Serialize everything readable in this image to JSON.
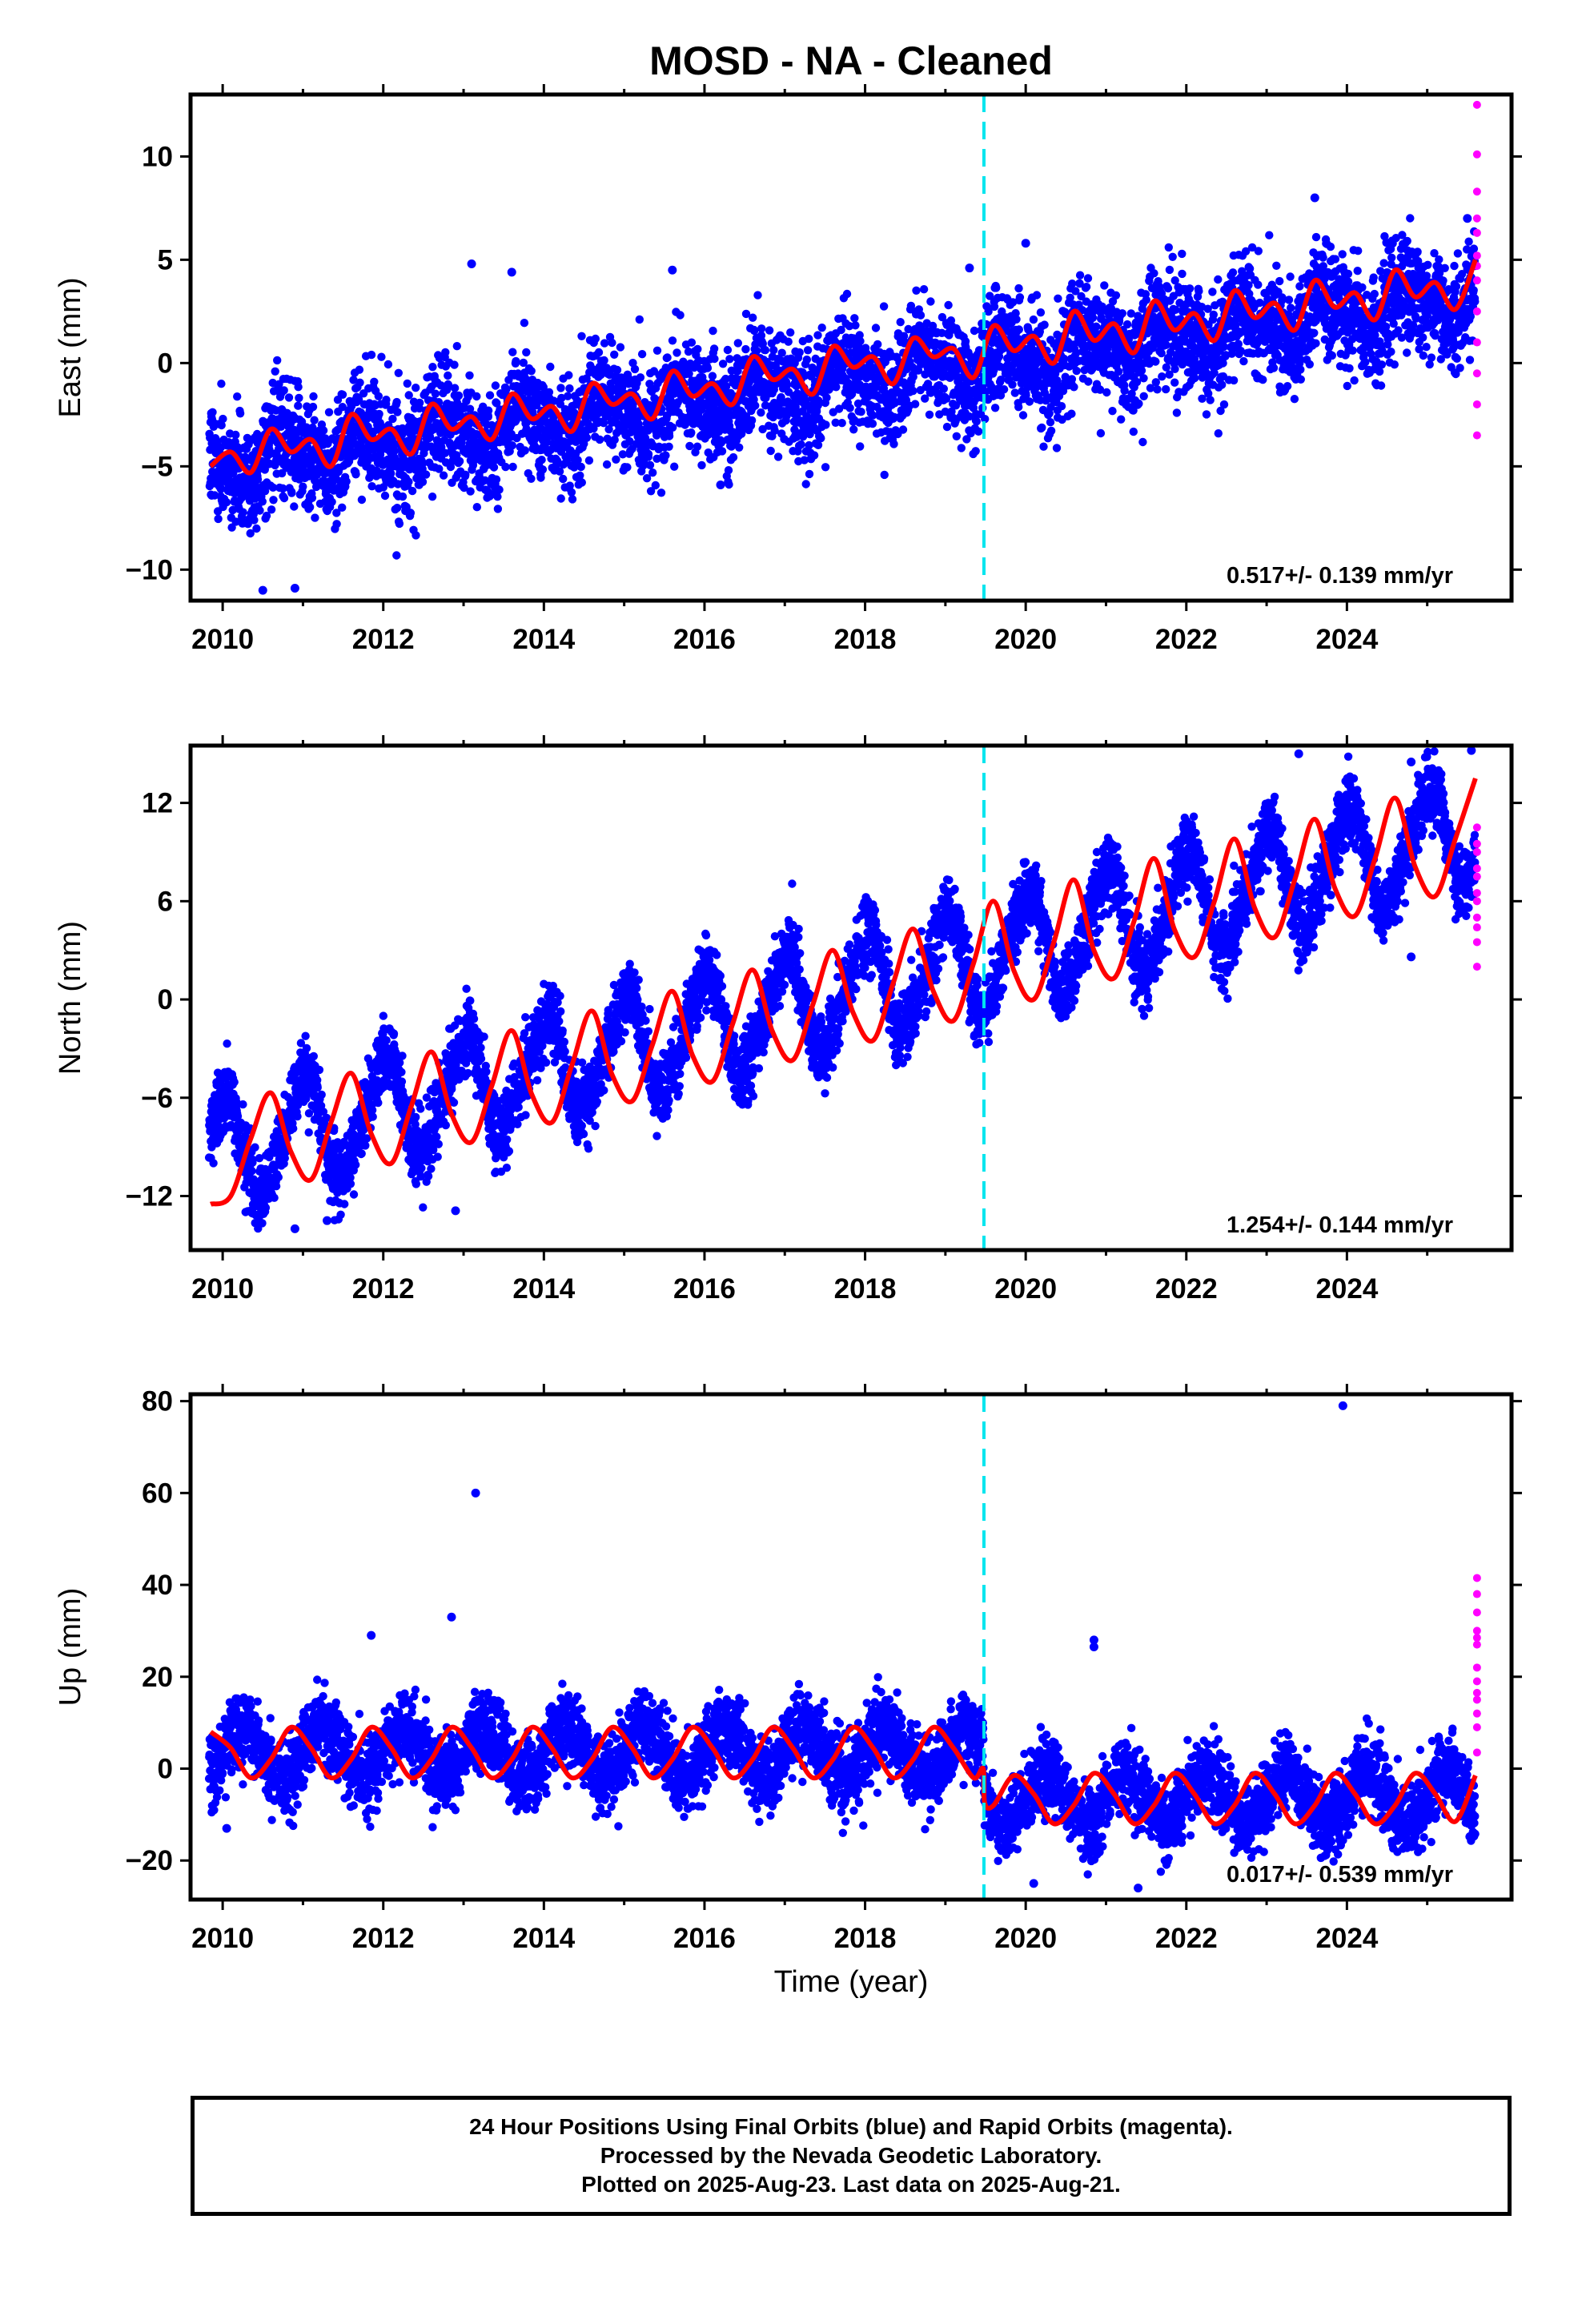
{
  "title": "MOSD  - NA - Cleaned",
  "xlabel": "Time (year)",
  "caption": {
    "line1": "24 Hour Positions Using Final Orbits (blue) and Rapid Orbits (magenta).",
    "line2": "Processed by the Nevada Geodetic Laboratory.",
    "line3": "Plotted on 2025-Aug-23. Last data on 2025-Aug-21."
  },
  "colors": {
    "final_points": "#0000ff",
    "rapid_points": "#ff00ff",
    "model_fit": "#ff0000",
    "equipment_change": "#00e5ee"
  },
  "chart_data": [
    {
      "type": "scatter",
      "component": "East",
      "ylabel": "East (mm)",
      "rate_label": "0.517+/- 0.139 mm/yr",
      "xlim": [
        2009.6,
        2026.05
      ],
      "ylim": [
        -11.5,
        13.0
      ],
      "xticks": [
        "2010",
        "2012",
        "2014",
        "2016",
        "2018",
        "2020",
        "2022",
        "2024"
      ],
      "yticks": [
        "−10",
        "−5",
        "0",
        "5",
        "10"
      ],
      "ytick_values": [
        -10,
        -5,
        0,
        5,
        10
      ],
      "equipment_change_year": 2019.48,
      "grid": false,
      "series": [
        {
          "name": "Final Orbits",
          "kind": "points",
          "color": "blue",
          "model": {
            "start": 2009.83,
            "end": 2025.6,
            "offset": -4.9,
            "rate": 0.517,
            "annual_amp": 0.9,
            "annual_phase": 3.14,
            "semiannual_amp": 0.3,
            "scatter_sd": 1.3
          },
          "highlight_points": [
            [
              2013.1,
              4.8
            ],
            [
              2013.6,
              4.4
            ],
            [
              2015.6,
              4.5
            ],
            [
              2019.3,
              4.6
            ],
            [
              2020.0,
              5.8
            ],
            [
              2023.6,
              8.0
            ],
            [
              2025.5,
              7.0
            ],
            [
              2010.5,
              -11.0
            ],
            [
              2010.9,
              -10.9
            ],
            [
              2016.2,
              -5.9
            ]
          ]
        },
        {
          "name": "Rapid Orbits",
          "kind": "points",
          "color": "magenta",
          "points": [
            [
              2025.62,
              12.5
            ],
            [
              2025.62,
              10.1
            ],
            [
              2025.62,
              8.3
            ],
            [
              2025.62,
              7.0
            ],
            [
              2025.62,
              6.3
            ],
            [
              2025.62,
              5.2
            ],
            [
              2025.62,
              4.7
            ],
            [
              2025.62,
              4.0
            ],
            [
              2025.62,
              2.5
            ],
            [
              2025.62,
              1.0
            ],
            [
              2025.62,
              -0.5
            ],
            [
              2025.62,
              -2.0
            ],
            [
              2025.62,
              -3.5
            ]
          ]
        },
        {
          "name": "Model Fit",
          "kind": "curve",
          "color": "red",
          "x": [
            2009.85,
            2010.1,
            2010.35,
            2010.6,
            2010.85,
            2011.1,
            2011.35,
            2011.6,
            2011.85,
            2012.1,
            2012.35,
            2012.6,
            2012.85,
            2013.1,
            2013.35,
            2013.6,
            2013.85,
            2014.1,
            2014.35,
            2014.6,
            2014.85,
            2015.1,
            2015.35,
            2015.6,
            2015.85,
            2016.1,
            2016.35,
            2016.6,
            2016.85,
            2017.1,
            2017.35,
            2017.6,
            2017.85,
            2018.1,
            2018.35,
            2018.6,
            2018.85,
            2019.1,
            2019.35,
            2019.6,
            2019.85,
            2020.1,
            2020.35,
            2020.6,
            2020.85,
            2021.1,
            2021.35,
            2021.6,
            2021.85,
            2022.1,
            2022.35,
            2022.6,
            2022.85,
            2023.1,
            2023.35,
            2023.6,
            2023.85,
            2024.1,
            2024.35,
            2024.6,
            2024.85,
            2025.1,
            2025.35,
            2025.6
          ],
          "y": [
            -5.0,
            -4.3,
            -5.3,
            -3.2,
            -4.3,
            -3.7,
            -5.0,
            -2.5,
            -3.7,
            -3.2,
            -4.4,
            -2.0,
            -3.2,
            -2.6,
            -3.7,
            -1.5,
            -2.7,
            -2.1,
            -3.3,
            -1.0,
            -2.0,
            -1.5,
            -2.7,
            -0.4,
            -1.6,
            -1.0,
            -2.0,
            0.3,
            -0.8,
            -0.3,
            -1.5,
            0.8,
            -0.2,
            0.3,
            -1.0,
            1.2,
            0.3,
            0.7,
            -0.7,
            1.8,
            0.6,
            1.3,
            0.0,
            2.5,
            1.1,
            1.9,
            0.5,
            3.0,
            1.6,
            2.4,
            1.1,
            3.5,
            2.2,
            2.9,
            1.6,
            4.0,
            2.7,
            3.4,
            2.1,
            4.5,
            3.2,
            3.9,
            2.6,
            5.0
          ]
        }
      ]
    },
    {
      "type": "scatter",
      "component": "North",
      "ylabel": "North (mm)",
      "rate_label": "1.254+/- 0.144 mm/yr",
      "xlim": [
        2009.6,
        2026.05
      ],
      "ylim": [
        -15.3,
        15.5
      ],
      "xticks": [
        "2010",
        "2012",
        "2014",
        "2016",
        "2018",
        "2020",
        "2022",
        "2024"
      ],
      "yticks": [
        "−12",
        "−6",
        "0",
        "6",
        "12"
      ],
      "ytick_values": [
        -12,
        -6,
        0,
        6,
        12
      ],
      "equipment_change_year": 2019.48,
      "grid": false,
      "series": [
        {
          "name": "Final Orbits",
          "kind": "points",
          "color": "blue",
          "model": {
            "start": 2009.83,
            "end": 2025.6,
            "offset": -9.3,
            "rate": 1.254,
            "annual_amp": 3.1,
            "annual_phase": 1.57,
            "semiannual_amp": 0.5,
            "scatter_sd": 1.1
          },
          "highlight_points": [
            [
              2010.9,
              -14.0
            ],
            [
              2011.3,
              -13.5
            ],
            [
              2012.9,
              -12.9
            ],
            [
              2023.4,
              15.0
            ],
            [
              2024.8,
              14.5
            ],
            [
              2025.55,
              15.2
            ],
            [
              2024.8,
              2.6
            ]
          ]
        },
        {
          "name": "Rapid Orbits",
          "kind": "points",
          "color": "magenta",
          "points": [
            [
              2025.62,
              10.5
            ],
            [
              2025.62,
              9.5
            ],
            [
              2025.62,
              9.0
            ],
            [
              2025.62,
              8.0
            ],
            [
              2025.62,
              7.5
            ],
            [
              2025.62,
              6.5
            ],
            [
              2025.62,
              6.0
            ],
            [
              2025.62,
              5.0
            ],
            [
              2025.62,
              4.4
            ],
            [
              2025.62,
              3.5
            ],
            [
              2025.62,
              2.0
            ]
          ]
        },
        {
          "name": "Model Fit",
          "kind": "curve",
          "color": "red",
          "x": [
            2009.85,
            2010.1,
            2010.35,
            2010.6,
            2010.85,
            2011.1,
            2011.35,
            2011.6,
            2011.85,
            2012.1,
            2012.35,
            2012.6,
            2012.85,
            2013.1,
            2013.35,
            2013.6,
            2013.85,
            2014.1,
            2014.35,
            2014.6,
            2014.85,
            2015.1,
            2015.35,
            2015.6,
            2015.85,
            2016.1,
            2016.35,
            2016.6,
            2016.85,
            2017.1,
            2017.35,
            2017.6,
            2017.85,
            2018.1,
            2018.35,
            2018.6,
            2018.85,
            2019.1,
            2019.35,
            2019.6,
            2019.85,
            2020.1,
            2020.35,
            2020.6,
            2020.85,
            2021.1,
            2021.35,
            2021.6,
            2021.85,
            2022.1,
            2022.35,
            2022.6,
            2022.85,
            2023.1,
            2023.35,
            2023.6,
            2023.85,
            2024.1,
            2024.35,
            2024.6,
            2024.85,
            2025.1,
            2025.35,
            2025.6
          ],
          "y": [
            -12.5,
            -12.0,
            -8.5,
            -5.7,
            -9.3,
            -11.0,
            -7.5,
            -4.5,
            -8.2,
            -10.0,
            -6.5,
            -3.2,
            -7.0,
            -8.7,
            -5.3,
            -1.9,
            -5.8,
            -7.5,
            -4.0,
            -0.7,
            -4.6,
            -6.2,
            -2.8,
            0.5,
            -3.4,
            -5.0,
            -1.5,
            1.8,
            -2.0,
            -3.7,
            -0.3,
            3.0,
            -0.8,
            -2.5,
            1.0,
            4.3,
            0.5,
            -1.3,
            2.2,
            6.0,
            1.8,
            0.0,
            3.5,
            7.3,
            3.0,
            1.3,
            4.8,
            8.6,
            4.3,
            2.6,
            6.0,
            9.8,
            5.6,
            3.8,
            7.3,
            11.0,
            6.8,
            5.1,
            8.6,
            12.3,
            8.1,
            6.3,
            9.8,
            13.5
          ]
        }
      ]
    },
    {
      "type": "scatter",
      "component": "Up",
      "ylabel": "Up (mm)",
      "rate_label": "0.017+/- 0.539 mm/yr",
      "xlim": [
        2009.6,
        2026.05
      ],
      "ylim": [
        -28.5,
        81.5
      ],
      "xticks": [
        "2010",
        "2012",
        "2014",
        "2016",
        "2018",
        "2020",
        "2022",
        "2024"
      ],
      "yticks": [
        "−20",
        "0",
        "20",
        "40",
        "60",
        "80"
      ],
      "ytick_values": [
        -20,
        0,
        20,
        40,
        60,
        80
      ],
      "equipment_change_year": 2019.48,
      "grid": false,
      "series": [
        {
          "name": "Final Orbits",
          "kind": "points",
          "color": "blue",
          "model": {
            "start": 2009.83,
            "end": 2025.6,
            "offset": 3.5,
            "rate": 0.017,
            "annual_amp": 5.5,
            "annual_phase": 0.0,
            "semiannual_amp": 0.0,
            "scatter_sd": 4.0,
            "step_at": 2019.48,
            "step": -10.0
          },
          "highlight_points": [
            [
              2013.15,
              60.0
            ],
            [
              2023.95,
              79.0
            ],
            [
              2012.85,
              33.0
            ],
            [
              2011.85,
              29.0
            ],
            [
              2020.85,
              28.0
            ],
            [
              2020.85,
              26.5
            ],
            [
              2021.4,
              -26.0
            ],
            [
              2020.1,
              -25.0
            ],
            [
              2010.05,
              -13.0
            ]
          ]
        },
        {
          "name": "Rapid Orbits",
          "kind": "points",
          "color": "magenta",
          "points": [
            [
              2025.62,
              41.5
            ],
            [
              2025.62,
              38.0
            ],
            [
              2025.62,
              34.0
            ],
            [
              2025.62,
              30.0
            ],
            [
              2025.62,
              28.5
            ],
            [
              2025.62,
              27.0
            ],
            [
              2025.62,
              22.0
            ],
            [
              2025.62,
              19.0
            ],
            [
              2025.62,
              16.5
            ],
            [
              2025.62,
              15.0
            ],
            [
              2025.62,
              12.0
            ],
            [
              2025.62,
              9.0
            ],
            [
              2025.62,
              3.5
            ]
          ]
        },
        {
          "name": "Model Fit",
          "kind": "curve",
          "color": "red",
          "x": [
            2009.85,
            2010.1,
            2010.35,
            2010.6,
            2010.85,
            2011.1,
            2011.35,
            2011.6,
            2011.85,
            2012.1,
            2012.35,
            2012.6,
            2012.85,
            2013.1,
            2013.35,
            2013.6,
            2013.85,
            2014.1,
            2014.35,
            2014.6,
            2014.85,
            2015.1,
            2015.35,
            2015.6,
            2015.85,
            2016.1,
            2016.35,
            2016.6,
            2016.85,
            2017.1,
            2017.35,
            2017.6,
            2017.85,
            2018.1,
            2018.35,
            2018.6,
            2018.85,
            2019.1,
            2019.35,
            2019.47,
            2019.49,
            2019.6,
            2019.85,
            2020.1,
            2020.35,
            2020.6,
            2020.85,
            2021.1,
            2021.35,
            2021.6,
            2021.85,
            2022.1,
            2022.35,
            2022.6,
            2022.85,
            2023.1,
            2023.35,
            2023.6,
            2023.85,
            2024.1,
            2024.35,
            2024.6,
            2024.85,
            2025.1,
            2025.35,
            2025.6
          ],
          "y": [
            8.0,
            4.5,
            -2.0,
            2.0,
            9.0,
            4.5,
            -2.0,
            2.0,
            9.0,
            4.5,
            -2.0,
            2.0,
            9.0,
            4.5,
            -2.0,
            2.0,
            9.0,
            4.5,
            -2.0,
            2.0,
            9.0,
            4.5,
            -2.0,
            2.0,
            9.0,
            4.5,
            -2.0,
            2.0,
            9.0,
            4.5,
            -2.0,
            2.0,
            9.0,
            4.5,
            -2.0,
            2.0,
            9.0,
            4.5,
            -2.0,
            0.0,
            -7.5,
            -8.0,
            -1.5,
            -5.5,
            -12.0,
            -8.0,
            -1.0,
            -5.5,
            -12.0,
            -8.0,
            -1.0,
            -5.5,
            -12.0,
            -8.0,
            -1.0,
            -5.5,
            -12.0,
            -8.0,
            -1.0,
            -5.5,
            -12.0,
            -8.0,
            -1.0,
            -5.5,
            -11.5,
            -1.5
          ]
        }
      ]
    }
  ]
}
